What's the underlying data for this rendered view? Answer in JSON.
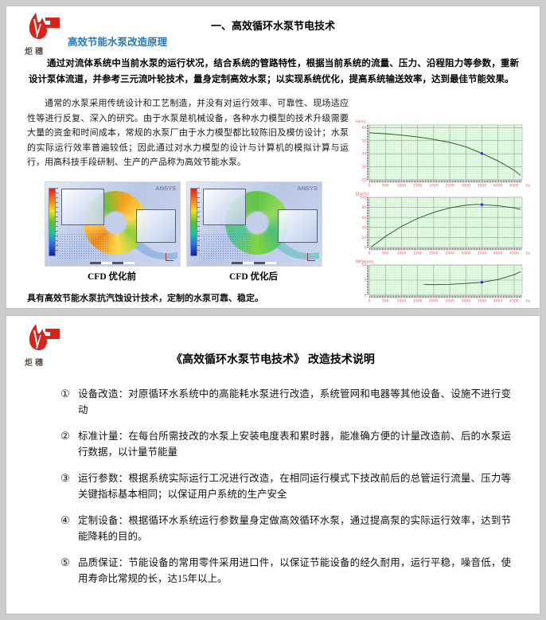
{
  "colors": {
    "accent_blue": "#1e7ac4",
    "logo_red": "#d6251c",
    "chart_bg": "#e7fbe7",
    "chart_minor_grid": "#bdeebd",
    "chart_major_grid": "#9a9a9a",
    "chart_tick_label": "#e05a5a",
    "chart_curve": "#23501f",
    "chart_marker": "#2b2bd0"
  },
  "page1": {
    "logo": {
      "brand": "炬穗"
    },
    "title": "一、高效循环水泵节电技术",
    "subtitle": "高效节能水泵改造原理",
    "para1": "通过对流体系统中当前水泵的运行状况，结合系统的管路特性，根据当前系统的流量、压力、沿程阻力等参数，重新设计泵体流道，并参考三元流叶轮技术，量身定制高效水泵；以实现系统优化，提高系统输送效率，达到最佳节能效果。",
    "para2": "通常的水泵采用传统设计和工艺制造，并没有对运行效率、可靠性、现场适应性等进行反复、深入的研究。由于水泵是机械设备，各种水力模型的技术升级需要大量的资金和时间成本，常规的水泵厂由于水力模型都比较陈旧及模仿设计；水泵的实际运行效率普遍较低；因此通过对水力模型的设计与计算机的模拟计算与运行，用高科技手段研制、生产的产品称为高效节能水泵。",
    "cfd": {
      "watermark": "ANSYS",
      "caption_before": "CFD 优化前",
      "caption_after": "CFD 优化后"
    },
    "footnote": "具有高效节能水泵抗汽蚀设计技术，定制的水泵可靠、稳定。"
  },
  "page2": {
    "logo": {
      "brand": "炬穗"
    },
    "title": "《高效循环水泵节电技术》 改造技术说明",
    "items": [
      {
        "num": "①",
        "text": "设备改造：对原循环水系统中的高能耗水泵进行改造，系统管网和电器等其他设备、设施不进行变动"
      },
      {
        "num": "②",
        "text": "标准计量：在每台所需技改的水泵上安装电度表和累时器，能准确方便的计量改造前、后的水泵运行数据，以计量节能量"
      },
      {
        "num": "③",
        "text": "运行参数：根据系统实际运行工况进行改造，在相同运行模式下技改前后的总管运行流量、压力等关键指标基本相同；以保证用户系统的生产安全"
      },
      {
        "num": "④",
        "text": "定制设备：根据循环水系统运行参数量身定做高效循环水泵，通过提高泵的实际运行效率，达到节能降耗的目的。"
      },
      {
        "num": "⑤",
        "text": "品质保证：节能设备的常用零件采用进口件，以保证节能设备的经久耐用，运行平稳，噪音低，使用寿命比常规的长，达15年以上。"
      }
    ]
  },
  "chart_data": [
    {
      "type": "line",
      "title": "",
      "ylabel": "H(m)",
      "xlabel": "",
      "x_unit": "l/s",
      "xlim": [
        0,
        4750
      ],
      "ylim": [
        20,
        62
      ],
      "x_ticks": [
        0,
        500,
        1000,
        1500,
        2000,
        2500,
        3000,
        3500,
        4000,
        4500
      ],
      "y_ticks": [
        20,
        30,
        40,
        50,
        60
      ],
      "grid": true,
      "points": [
        [
          0,
          56
        ],
        [
          500,
          55.3
        ],
        [
          1000,
          54.2
        ],
        [
          1500,
          52.8
        ],
        [
          2000,
          51
        ],
        [
          2500,
          48.6
        ],
        [
          3000,
          45.3
        ],
        [
          3500,
          40.2
        ],
        [
          4000,
          34.5
        ],
        [
          4500,
          27.5
        ],
        [
          4700,
          23.5
        ]
      ],
      "marker": [
        3500,
        40.2
      ]
    },
    {
      "type": "line",
      "title": "",
      "ylabel": "Eta(%)",
      "xlabel": "",
      "x_unit": "l/s",
      "xlim": [
        0,
        4750
      ],
      "ylim": [
        0,
        100
      ],
      "x_ticks": [
        0,
        500,
        1000,
        1500,
        2000,
        2500,
        3000,
        3500,
        4000,
        4500
      ],
      "y_ticks": [
        0,
        20,
        40,
        60,
        80,
        100
      ],
      "grid": true,
      "points": [
        [
          60,
          1
        ],
        [
          500,
          22
        ],
        [
          1000,
          42
        ],
        [
          1500,
          58
        ],
        [
          2000,
          70
        ],
        [
          2500,
          79
        ],
        [
          3000,
          84.5
        ],
        [
          3300,
          86
        ],
        [
          3500,
          85.5
        ],
        [
          4000,
          83.5
        ],
        [
          4500,
          79
        ],
        [
          4700,
          76
        ]
      ],
      "marker": [
        3500,
        85.5
      ]
    },
    {
      "type": "line",
      "title": "",
      "ylabel": "NPSH(m)",
      "xlabel": "",
      "x_unit": "l/s",
      "xlim": [
        0,
        4750
      ],
      "ylim": [
        0,
        10
      ],
      "x_ticks": [
        0,
        500,
        1000,
        1500,
        2000,
        2500,
        3000,
        3500,
        4000,
        4500
      ],
      "y_ticks": [
        0,
        5,
        10
      ],
      "grid": true,
      "points": [
        [
          1700,
          3.6
        ],
        [
          2000,
          3.5
        ],
        [
          2500,
          3.6
        ],
        [
          3000,
          3.9
        ],
        [
          3500,
          4.3
        ],
        [
          4000,
          5.2
        ],
        [
          4500,
          6.8
        ],
        [
          4700,
          7.8
        ]
      ],
      "marker": [
        3500,
        4.3
      ]
    }
  ]
}
